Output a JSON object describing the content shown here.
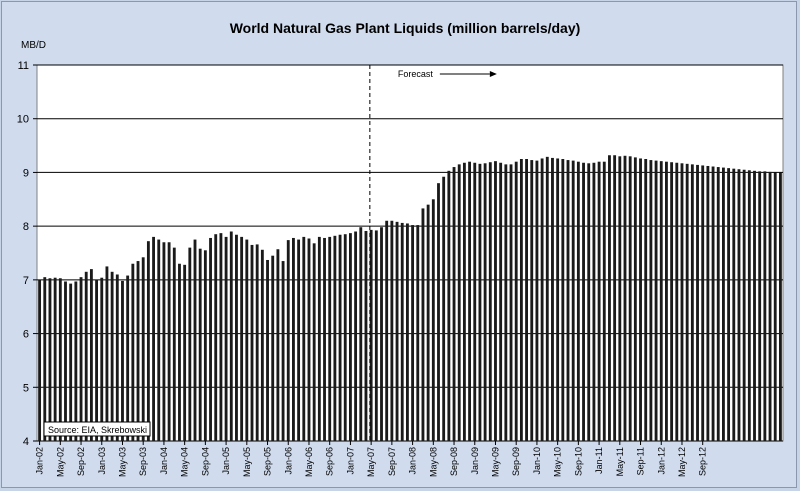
{
  "chart_data": {
    "type": "bar",
    "title": "World Natural Gas Plant Liquids (million barrels/day)",
    "ylabel": "MB/D",
    "ylim": [
      4,
      11
    ],
    "yticks": [
      4,
      5,
      6,
      7,
      8,
      9,
      10,
      11
    ],
    "grid": true,
    "x_tick_labels": [
      "Jan-02",
      "May-02",
      "Sep-02",
      "Jan-03",
      "May-03",
      "Sep-03",
      "Jan-04",
      "May-04",
      "Sep-04",
      "Jan-05",
      "May-05",
      "Sep-05",
      "Jan-06",
      "May-06",
      "Sep-06",
      "Jan-07",
      "May-07",
      "Sep-07",
      "Jan-08",
      "May-08",
      "Sep-08",
      "Jan-09",
      "May-09",
      "Sep-09",
      "Jan-10",
      "May-10",
      "Sep-10",
      "Jan-11",
      "May-11",
      "Sep-11",
      "Jan-12",
      "May-12",
      "Sep-12"
    ],
    "forecast_label": "Forecast",
    "forecast_start_index": 64,
    "source": "Source: EIA, Skrebowski",
    "colors": {
      "bar": "#1a1a1a",
      "background": "#c9d5e8",
      "plot": "#ffffff",
      "grid": "#000000"
    },
    "values": [
      7.0,
      7.05,
      7.03,
      7.04,
      7.03,
      6.97,
      6.93,
      6.97,
      7.05,
      7.15,
      7.2,
      7.0,
      7.04,
      7.25,
      7.15,
      7.1,
      6.98,
      7.08,
      7.3,
      7.35,
      7.42,
      7.72,
      7.8,
      7.75,
      7.7,
      7.7,
      7.6,
      7.3,
      7.28,
      7.6,
      7.75,
      7.58,
      7.55,
      7.78,
      7.85,
      7.87,
      7.8,
      7.9,
      7.84,
      7.8,
      7.75,
      7.65,
      7.66,
      7.56,
      7.37,
      7.45,
      7.57,
      7.35,
      7.74,
      7.78,
      7.75,
      7.8,
      7.77,
      7.68,
      7.8,
      7.78,
      7.8,
      7.82,
      7.84,
      7.85,
      7.87,
      7.9,
      7.98,
      7.91,
      7.93,
      7.92,
      7.98,
      8.1,
      8.1,
      8.08,
      8.06,
      8.05,
      8.02,
      8.02,
      8.33,
      8.4,
      8.5,
      8.8,
      8.92,
      9.03,
      9.1,
      9.15,
      9.18,
      9.2,
      9.18,
      9.16,
      9.17,
      9.19,
      9.21,
      9.18,
      9.15,
      9.15,
      9.2,
      9.25,
      9.25,
      9.23,
      9.22,
      9.26,
      9.29,
      9.27,
      9.26,
      9.25,
      9.23,
      9.22,
      9.2,
      9.18,
      9.17,
      9.18,
      9.2,
      9.2,
      9.32,
      9.32,
      9.3,
      9.31,
      9.3,
      9.28,
      9.26,
      9.25,
      9.23,
      9.22,
      9.21,
      9.2,
      9.19,
      9.18,
      9.17,
      9.16,
      9.15,
      9.14,
      9.13,
      9.12,
      9.11,
      9.1,
      9.09,
      9.08,
      9.07,
      9.06,
      9.05,
      9.04,
      9.03,
      9.02,
      9.02,
      9.01,
      9.0,
      9.0
    ]
  }
}
